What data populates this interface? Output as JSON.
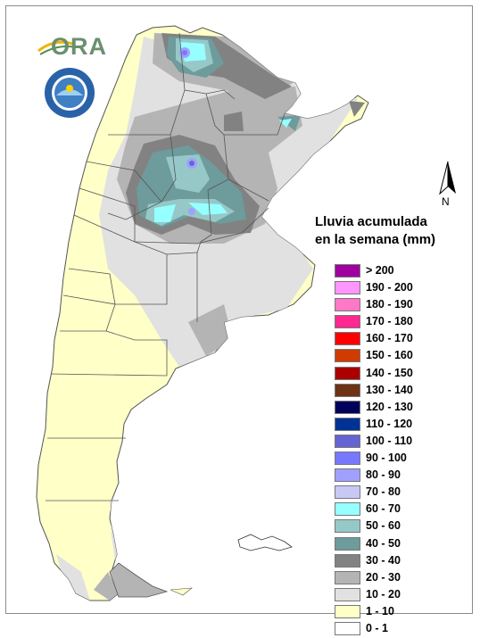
{
  "logos": {
    "ora_text": "ORA",
    "seal_icon": "ministry-seal-icon"
  },
  "north_arrow": {
    "label": "N"
  },
  "legend": {
    "title_line1": "Lluvia acumulada",
    "title_line2": "en la semana (mm)",
    "items": [
      {
        "label": "> 200",
        "color": "#a000a0"
      },
      {
        "label": "190 - 200",
        "color": "#ff96ff"
      },
      {
        "label": "180 - 190",
        "color": "#ff78c8"
      },
      {
        "label": "170 - 180",
        "color": "#ff2890"
      },
      {
        "label": "160 - 170",
        "color": "#ff0000"
      },
      {
        "label": "150 - 160",
        "color": "#d03c00"
      },
      {
        "label": "140 - 150",
        "color": "#aa0000"
      },
      {
        "label": "130 - 140",
        "color": "#6e3214"
      },
      {
        "label": "120 - 130",
        "color": "#00005a"
      },
      {
        "label": "110 - 120",
        "color": "#003296"
      },
      {
        "label": "100 - 110",
        "color": "#6464d2"
      },
      {
        "label": "90 - 100",
        "color": "#7878ff"
      },
      {
        "label": "80 - 90",
        "color": "#a0a0ff"
      },
      {
        "label": "70 - 80",
        "color": "#c8c8f5"
      },
      {
        "label": "60 - 70",
        "color": "#96ffff"
      },
      {
        "label": "50 - 60",
        "color": "#96c8c8"
      },
      {
        "label": "40 - 50",
        "color": "#6e9b9b"
      },
      {
        "label": "30 - 40",
        "color": "#828282"
      },
      {
        "label": "20 - 30",
        "color": "#b4b4b4"
      },
      {
        "label": "10 - 20",
        "color": "#e1e1e1"
      },
      {
        "label": "1 - 10",
        "color": "#ffffc8"
      },
      {
        "label": "0 - 1",
        "color": "#ffffff"
      }
    ]
  },
  "map_colors": {
    "land_base": "#ffffc8",
    "outline": "#555555"
  }
}
